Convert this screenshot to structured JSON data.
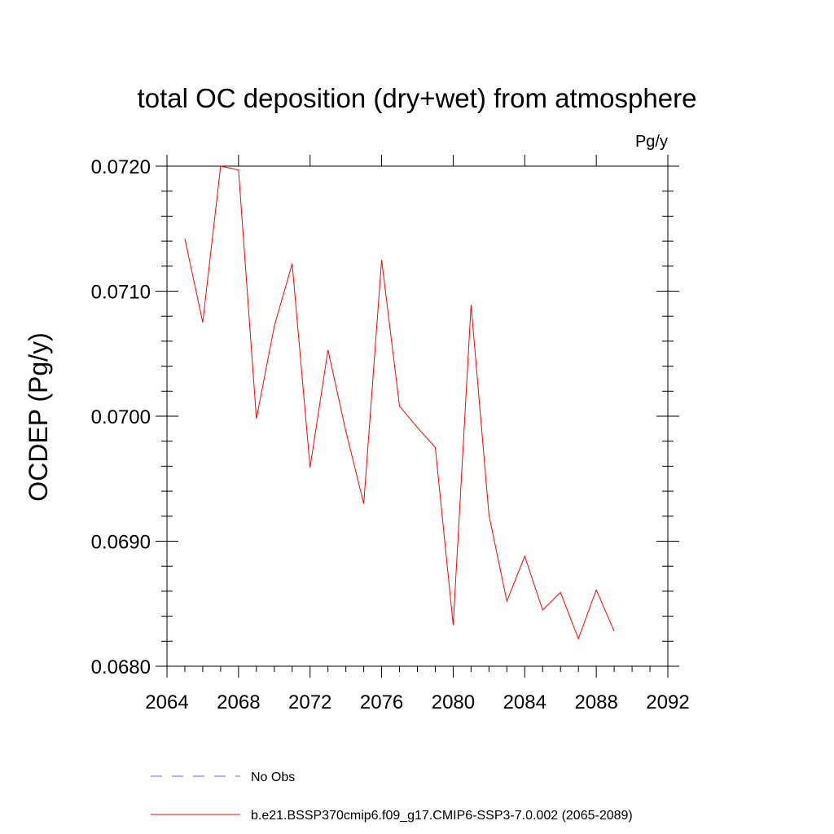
{
  "chart_data": {
    "type": "line",
    "title": "total OC deposition (dry+wet) from atmosphere",
    "units_label": "Pg/y",
    "xlabel": "",
    "ylabel": "OCDEP  (Pg/y)",
    "xlim": [
      2064,
      2092
    ],
    "ylim": [
      0.068,
      0.072
    ],
    "x_ticks": [
      2064,
      2068,
      2072,
      2076,
      2080,
      2084,
      2088,
      2092
    ],
    "x_tick_labels": [
      "2064",
      "2068",
      "2072",
      "2076",
      "2080",
      "2084",
      "2088",
      "2092"
    ],
    "y_ticks": [
      0.068,
      0.069,
      0.07,
      0.071,
      0.072
    ],
    "y_tick_labels": [
      "0.0680",
      "0.0690",
      "0.0700",
      "0.0710",
      "0.0720"
    ],
    "x_minor_step": 1,
    "y_minor_step": 0.0002,
    "grid": false,
    "legend_placement": "bottom",
    "series": [
      {
        "name": "b.e21.BSSP370cmip6.f09_g17.CMIP6-SSP3-7.0.002 (2065-2089)",
        "color": "#ff0000",
        "style": "solid",
        "x": [
          2065,
          2066,
          2067,
          2068,
          2069,
          2070,
          2071,
          2072,
          2073,
          2074,
          2075,
          2076,
          2077,
          2078,
          2079,
          2080,
          2081,
          2082,
          2083,
          2084,
          2085,
          2086,
          2087,
          2088,
          2089
        ],
        "values": [
          0.07142,
          0.07075,
          0.072,
          0.07197,
          0.06998,
          0.07072,
          0.07122,
          0.06959,
          0.07053,
          0.06988,
          0.0693,
          0.07125,
          0.07008,
          0.06991,
          0.06975,
          0.06833,
          0.07089,
          0.06921,
          0.06852,
          0.06888,
          0.06845,
          0.06859,
          0.06822,
          0.06861,
          0.06828
        ]
      },
      {
        "name": "No Obs",
        "color": "#6a6ad0",
        "style": "dashed",
        "x": [],
        "values": []
      }
    ]
  }
}
